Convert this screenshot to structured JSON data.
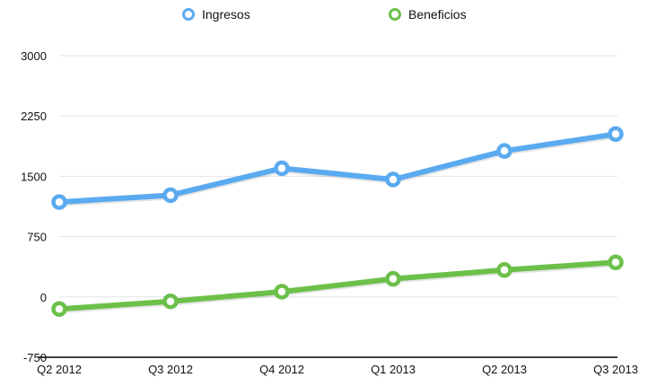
{
  "chart_data": {
    "type": "line",
    "categories": [
      "Q2 2012",
      "Q3 2012",
      "Q4 2012",
      "Q1 2013",
      "Q2 2013",
      "Q3 2013"
    ],
    "y_ticks": [
      "3000",
      "2250",
      "1500",
      "750",
      "0",
      "-750"
    ],
    "ylim": [
      -750,
      3000
    ],
    "grid": true,
    "legend_position": "top",
    "series": [
      {
        "name": "Ingresos",
        "color": "#5aaaf0",
        "values": [
          1180,
          1265,
          1600,
          1460,
          1815,
          2025
        ]
      },
      {
        "name": "Beneficios",
        "color": "#6cc04a",
        "values": [
          -150,
          -55,
          65,
          225,
          335,
          430
        ]
      }
    ]
  },
  "legend": {
    "items": [
      {
        "label": "Ingresos",
        "color": "#5aaaf0"
      },
      {
        "label": "Beneficios",
        "color": "#6cc04a"
      }
    ]
  }
}
